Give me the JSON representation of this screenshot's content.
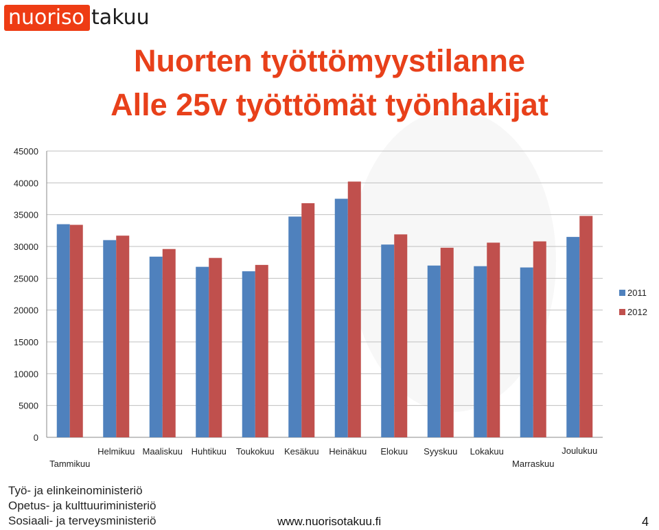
{
  "logo": {
    "part1": "nuoriso",
    "part2": "takuu"
  },
  "title_line1": "Nuorten työttömyystilanne",
  "title_line2": "Alle 25v työttömät työnhakijat",
  "colors": {
    "series2011": "#4f81bd",
    "series2012": "#c0504d",
    "title": "#e8401a"
  },
  "chart_data": {
    "type": "bar",
    "title": "",
    "xlabel": "",
    "ylabel": "",
    "ylim": [
      0,
      45000
    ],
    "yticks": [
      0,
      5000,
      10000,
      15000,
      20000,
      25000,
      30000,
      35000,
      40000,
      45000
    ],
    "grid": true,
    "legend": "right",
    "categories": [
      "Tammikuu",
      "Helmikuu",
      "Maaliskuu",
      "Huhtikuu",
      "Toukokuu",
      "Kesäkuu",
      "Heinäkuu",
      "Elokuu",
      "Syyskuu",
      "Lokakuu",
      "Marraskuu",
      "Joulukuu"
    ],
    "series": [
      {
        "name": "2011",
        "values": [
          33500,
          31000,
          28400,
          26800,
          26100,
          34700,
          37500,
          30300,
          27000,
          26900,
          26700,
          31500
        ]
      },
      {
        "name": "2012",
        "values": [
          33400,
          31700,
          29600,
          28200,
          27100,
          36800,
          40200,
          31900,
          29800,
          30600,
          30800,
          34800
        ]
      }
    ]
  },
  "footer": {
    "ministry1": "Työ- ja elinkeinoministeriö",
    "ministry2": "Opetus- ja kulttuuriministeriö",
    "ministry3": "Sosiaali- ja terveysministeriö",
    "url": "www.nuorisotakuu.fi",
    "page": "4"
  }
}
